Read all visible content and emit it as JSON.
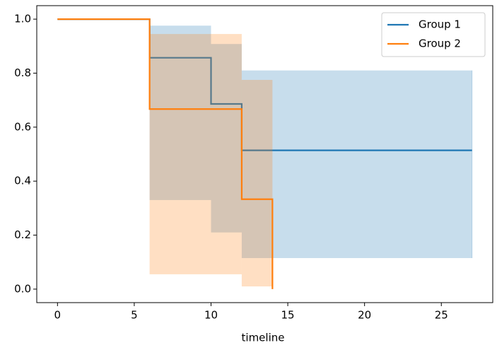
{
  "chart_data": {
    "type": "step",
    "x_label": "timeline",
    "xlim": [
      -1.35,
      28.35
    ],
    "xticks": [
      0,
      5,
      10,
      15,
      20,
      25
    ],
    "ylim": [
      -0.05,
      1.05
    ],
    "yticks": [
      {
        "value": 0,
        "label": "0.0"
      },
      0.2,
      0.4,
      0.6,
      0.8,
      {
        "value": 1,
        "label": "1.0"
      }
    ],
    "legend": "upper right",
    "series": [
      {
        "name": "Group 1",
        "color": "#1f77b4",
        "x": [
          0,
          6,
          10,
          12,
          27
        ],
        "values": [
          1,
          0.857,
          0.686,
          0.514,
          0.514
        ],
        "lower": [
          1,
          0.33,
          0.21,
          0.115,
          0.115
        ],
        "upper": [
          1,
          0.976,
          0.908,
          0.81,
          0.81
        ]
      },
      {
        "name": "Group 2",
        "color": "#ff7f0e",
        "x": [
          0,
          6,
          12,
          14
        ],
        "values": [
          1,
          0.667,
          0.333,
          0
        ],
        "lower": [
          1,
          0.055,
          0.01,
          0
        ],
        "upper": [
          1,
          0.945,
          0.775,
          0
        ]
      }
    ]
  }
}
